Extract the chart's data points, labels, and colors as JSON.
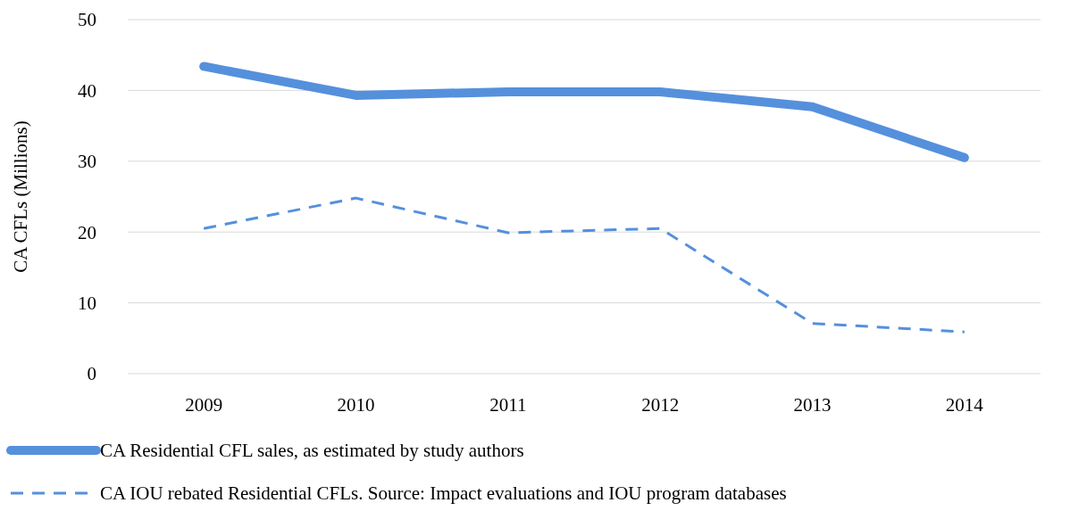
{
  "chart_data": {
    "type": "line",
    "ylabel": "CA CFLs (Millions)",
    "categories": [
      "2009",
      "2010",
      "2011",
      "2012",
      "2013",
      "2014"
    ],
    "ylim": [
      0,
      50
    ],
    "yticks": [
      0,
      10,
      20,
      30,
      40,
      50
    ],
    "grid": "y",
    "legend": "bottom",
    "marker": "none",
    "series": [
      {
        "name": "CA Residential CFL sales, as estimated by study authors",
        "color": "#5590dc",
        "line_style": "solid",
        "values": [
          43.4,
          39.3,
          39.8,
          39.8,
          37.7,
          30.5
        ]
      },
      {
        "name": "CA IOU rebated Residential CFLs. Source: Impact evaluations and IOU program databases",
        "color": "#5590dc",
        "line_style": "dashed",
        "values": [
          20.5,
          24.8,
          19.9,
          20.5,
          7.1,
          5.9
        ]
      }
    ]
  }
}
